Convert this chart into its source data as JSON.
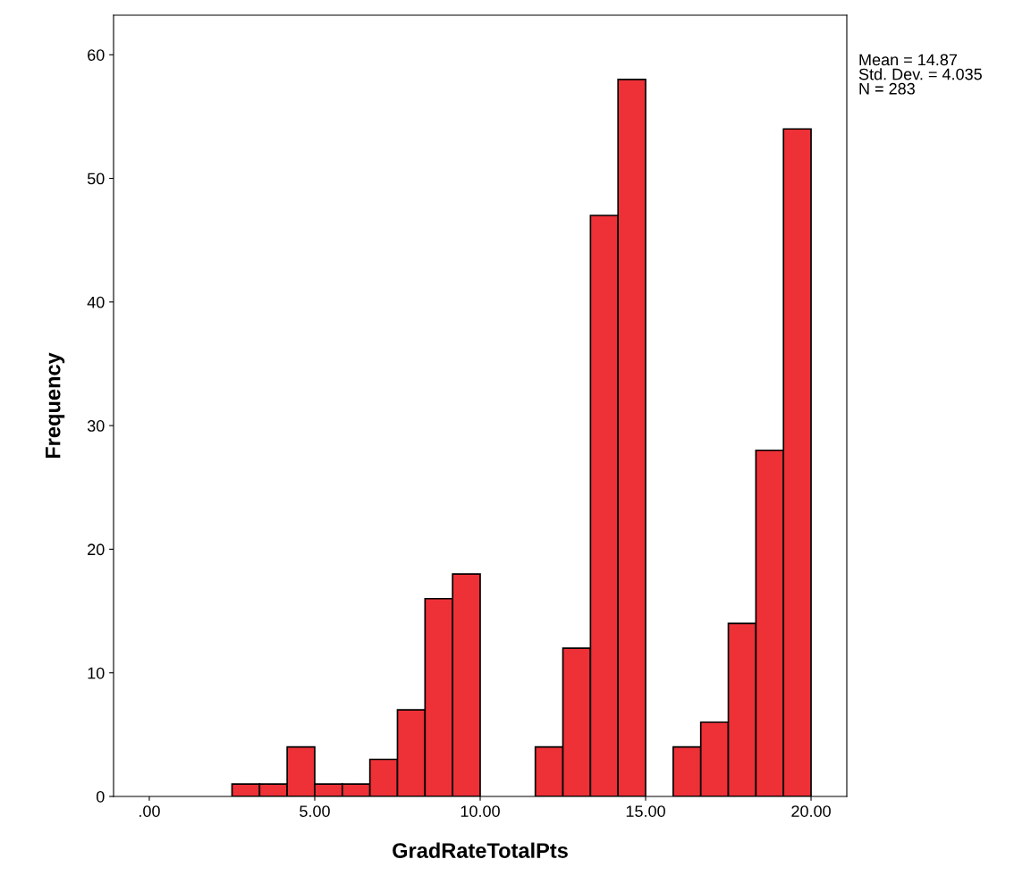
{
  "chart_data": {
    "type": "histogram",
    "xlabel": "GradRateTotalPts",
    "ylabel": "Frequency",
    "bins": [
      2.5,
      3.3333,
      4.1667,
      5.0,
      5.8333,
      6.6667,
      7.5,
      8.3333,
      9.1667,
      10.0,
      10.8333,
      11.6667,
      12.5,
      13.3333,
      14.1667,
      15.0,
      15.8333,
      16.6667,
      17.5,
      18.3333,
      19.1667,
      20.0
    ],
    "values": [
      1,
      1,
      4,
      1,
      1,
      3,
      7,
      16,
      18,
      0,
      0,
      4,
      12,
      47,
      58,
      0,
      4,
      6,
      14,
      28,
      54
    ],
    "color": "#ee3037",
    "xlim": [
      -1.08,
      21.08
    ],
    "ylim": [
      0,
      63.2
    ],
    "xticks": [
      {
        "value": 0,
        "label": ".00"
      },
      {
        "value": 5,
        "label": "5.00"
      },
      {
        "value": 10,
        "label": "10.00"
      },
      {
        "value": 15,
        "label": "15.00"
      },
      {
        "value": 20,
        "label": "20.00"
      }
    ],
    "yticks": [
      0,
      10,
      20,
      30,
      40,
      50,
      60
    ],
    "annotations": [
      "Mean = 14.87\nStd. Dev. = 4.035\nN = 283"
    ],
    "grid": false,
    "legend": false
  }
}
